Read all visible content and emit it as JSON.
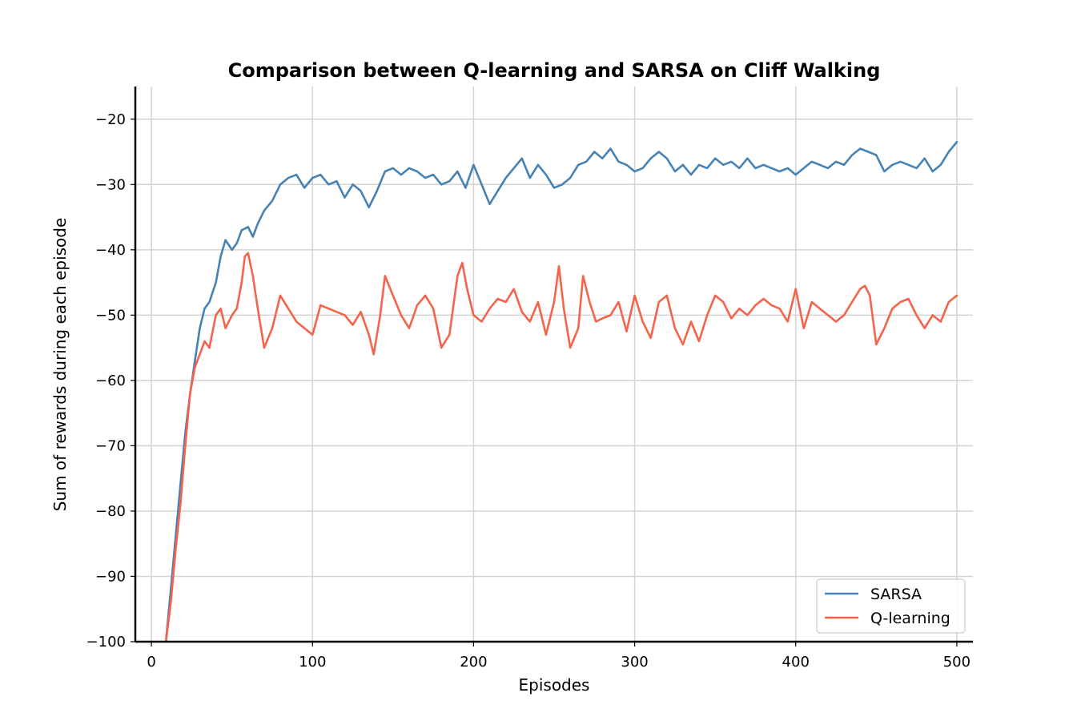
{
  "chart_data": {
    "type": "line",
    "title": "Comparison between Q-learning and SARSA on Cliff Walking",
    "xlabel": "Episodes",
    "ylabel": "Sum of rewards during each episode",
    "xlim": [
      -10,
      510
    ],
    "ylim": [
      -100,
      -15
    ],
    "xticks": [
      0,
      100,
      200,
      300,
      400,
      500
    ],
    "yticks": [
      -100,
      -90,
      -80,
      -70,
      -60,
      -50,
      -40,
      -30,
      -20
    ],
    "grid": true,
    "legend_position": "lower right",
    "series": [
      {
        "name": "SARSA",
        "color": "#4682b4",
        "x": [
          9,
          12,
          15,
          18,
          21,
          24,
          27,
          30,
          33,
          36,
          40,
          43,
          46,
          50,
          53,
          56,
          60,
          63,
          66,
          70,
          75,
          80,
          85,
          90,
          95,
          100,
          105,
          110,
          115,
          120,
          125,
          130,
          135,
          140,
          145,
          150,
          155,
          160,
          165,
          170,
          175,
          180,
          185,
          190,
          195,
          200,
          205,
          210,
          215,
          220,
          225,
          230,
          235,
          240,
          245,
          250,
          255,
          260,
          265,
          270,
          275,
          280,
          285,
          290,
          295,
          300,
          305,
          310,
          315,
          320,
          325,
          330,
          335,
          340,
          345,
          350,
          355,
          360,
          365,
          370,
          375,
          380,
          385,
          390,
          395,
          400,
          405,
          410,
          415,
          420,
          425,
          430,
          435,
          440,
          445,
          450,
          455,
          460,
          465,
          470,
          475,
          480,
          485,
          490,
          495,
          500
        ],
        "values": [
          -100,
          -92,
          -84,
          -76,
          -68,
          -62,
          -57,
          -52,
          -49,
          -48,
          -45,
          -41,
          -38.5,
          -40,
          -39,
          -37,
          -36.5,
          -38,
          -36,
          -34,
          -32.5,
          -30,
          -29,
          -28.5,
          -30.5,
          -29,
          -28.5,
          -30,
          -29.5,
          -32,
          -30,
          -31,
          -33.5,
          -31,
          -28,
          -27.5,
          -28.5,
          -27.5,
          -28,
          -29,
          -28.5,
          -30,
          -29.5,
          -28,
          -30.5,
          -27,
          -30,
          -33,
          -31,
          -29,
          -27.5,
          -26,
          -29,
          -27,
          -28.5,
          -30.5,
          -30,
          -29,
          -27,
          -26.5,
          -25,
          -26,
          -24.5,
          -26.5,
          -27,
          -28,
          -27.5,
          -26,
          -25,
          -26,
          -28,
          -27,
          -28.5,
          -27,
          -27.5,
          -26,
          -27,
          -26.5,
          -27.5,
          -26,
          -27.5,
          -27,
          -27.5,
          -28,
          -27.5,
          -28.5,
          -27.5,
          -26.5,
          -27,
          -27.5,
          -26.5,
          -27,
          -25.5,
          -24.5,
          -25,
          -25.5,
          -28,
          -27,
          -26.5,
          -27,
          -27.5,
          -26,
          -28,
          -27,
          -25,
          -23.5
        ]
      },
      {
        "name": "Q-learning",
        "color": "#f5634a",
        "x": [
          9,
          12,
          15,
          18,
          21,
          24,
          27,
          30,
          33,
          36,
          40,
          43,
          46,
          50,
          53,
          56,
          58,
          60,
          63,
          66,
          70,
          75,
          80,
          85,
          90,
          95,
          100,
          105,
          110,
          115,
          120,
          125,
          130,
          135,
          138,
          142,
          145,
          150,
          155,
          160,
          165,
          170,
          175,
          180,
          185,
          190,
          193,
          196,
          200,
          205,
          210,
          215,
          220,
          225,
          230,
          235,
          240,
          245,
          250,
          253,
          256,
          260,
          265,
          268,
          272,
          276,
          280,
          285,
          290,
          295,
          300,
          305,
          310,
          315,
          320,
          325,
          330,
          335,
          340,
          345,
          350,
          355,
          360,
          365,
          370,
          375,
          380,
          385,
          390,
          395,
          400,
          405,
          410,
          415,
          420,
          425,
          430,
          435,
          440,
          443,
          446,
          450,
          455,
          460,
          465,
          470,
          475,
          480,
          485,
          490,
          495,
          500
        ],
        "values": [
          -100,
          -94,
          -86,
          -79,
          -70,
          -62,
          -58,
          -56,
          -54,
          -55,
          -50,
          -49,
          -52,
          -50,
          -49,
          -45,
          -41,
          -40.5,
          -44,
          -49,
          -55,
          -52,
          -47,
          -49,
          -51,
          -52,
          -53,
          -48.5,
          -49,
          -49.5,
          -50,
          -51.5,
          -49.5,
          -53,
          -56,
          -50,
          -44,
          -47,
          -50,
          -52,
          -48.5,
          -47,
          -49,
          -55,
          -53,
          -44,
          -42,
          -46,
          -50,
          -51,
          -49,
          -47.5,
          -48,
          -46,
          -49.5,
          -51,
          -48,
          -53,
          -48,
          -42.5,
          -49,
          -55,
          -52,
          -44,
          -48,
          -51,
          -50.5,
          -50,
          -48,
          -52.5,
          -47,
          -51,
          -53.5,
          -48,
          -47,
          -52,
          -54.5,
          -51,
          -54,
          -50,
          -47,
          -48,
          -50.5,
          -49,
          -50,
          -48.5,
          -47.5,
          -48.5,
          -49,
          -51,
          -46,
          -52,
          -48,
          -49,
          -50,
          -51,
          -50,
          -48,
          -46,
          -45.5,
          -47,
          -54.5,
          -52,
          -49,
          -48,
          -47.5,
          -50,
          -52,
          -50,
          -51,
          -48,
          -47
        ]
      }
    ]
  }
}
